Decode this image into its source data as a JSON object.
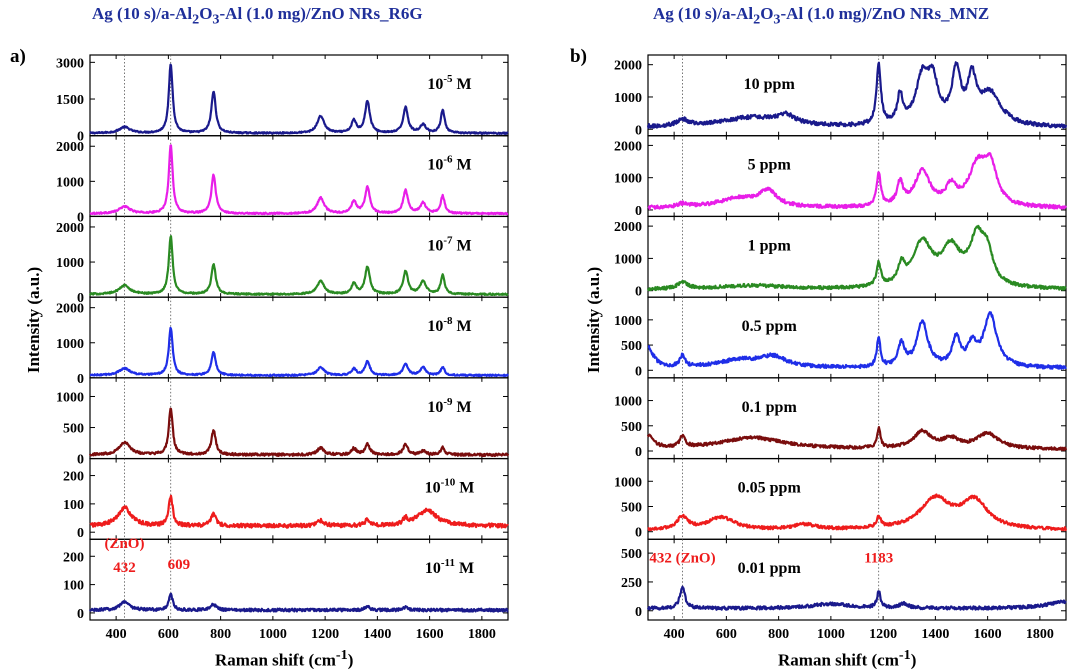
{
  "figure": {
    "y_axis_label": "Intensity (a.u.)",
    "x_axis_label_main": "Raman shift (cm",
    "x_axis_label_sup": "-1",
    "x_axis_label_end": ")"
  },
  "chart_data": [
    {
      "panel": "a)",
      "type": "line",
      "title_parts": [
        "Ag (10 s)/a-Al",
        "2",
        "O",
        "3",
        "-Al (1.0 mg)/ZnO NRs_R6G"
      ],
      "xlabel": "Raman shift (cm-1)",
      "ylabel": "Intensity (a.u.)",
      "xlim": [
        300,
        1900
      ],
      "xticks": [
        400,
        600,
        800,
        1000,
        1200,
        1400,
        1600,
        1800
      ],
      "guide_lines_x": [
        432,
        609
      ],
      "series": [
        {
          "name": "10-5 M",
          "label_base": "10",
          "label_exp": "-5",
          "label_unit": " M",
          "color": "#1a1a8c",
          "ylim": [
            0,
            3300
          ],
          "yticks": [
            0,
            1500,
            3000
          ],
          "tick_labels": [
            "0",
            "1500",
            "3000"
          ],
          "baseline": 100,
          "noise": 30,
          "peaks": [
            [
              432,
              250,
              25
            ],
            [
              609,
              2800,
              9
            ],
            [
              773,
              1700,
              10
            ],
            [
              1183,
              700,
              16
            ],
            [
              1310,
              500,
              11
            ],
            [
              1362,
              1300,
              11
            ],
            [
              1508,
              1050,
              11
            ],
            [
              1575,
              350,
              13
            ],
            [
              1650,
              950,
              9
            ]
          ]
        },
        {
          "name": "10-6 M",
          "label_base": "10",
          "label_exp": "-6",
          "label_unit": " M",
          "color": "#e81ee8",
          "ylim": [
            0,
            2300
          ],
          "yticks": [
            0,
            1000,
            2000
          ],
          "tick_labels": [
            "0",
            "1000",
            "2000"
          ],
          "baseline": 80,
          "noise": 22,
          "peaks": [
            [
              432,
              200,
              25
            ],
            [
              609,
              1950,
              9
            ],
            [
              773,
              1100,
              10
            ],
            [
              1183,
              450,
              16
            ],
            [
              1310,
              350,
              11
            ],
            [
              1362,
              750,
              11
            ],
            [
              1508,
              650,
              11
            ],
            [
              1575,
              300,
              13
            ],
            [
              1650,
              500,
              9
            ]
          ]
        },
        {
          "name": "10-7 M",
          "label_base": "10",
          "label_exp": "-7",
          "label_unit": " M",
          "color": "#2a8a22",
          "ylim": [
            0,
            2300
          ],
          "yticks": [
            0,
            1000,
            2000
          ],
          "tick_labels": [
            "0",
            "1000",
            "2000"
          ],
          "baseline": 80,
          "noise": 22,
          "peaks": [
            [
              432,
              250,
              25
            ],
            [
              609,
              1650,
              9
            ],
            [
              773,
              850,
              10
            ],
            [
              1183,
              380,
              16
            ],
            [
              1310,
              300,
              11
            ],
            [
              1362,
              780,
              11
            ],
            [
              1508,
              650,
              11
            ],
            [
              1575,
              380,
              13
            ],
            [
              1650,
              550,
              9
            ]
          ]
        },
        {
          "name": "10-8 M",
          "label_base": "10",
          "label_exp": "-8",
          "label_unit": " M",
          "color": "#1f2ee8",
          "ylim": [
            0,
            2300
          ],
          "yticks": [
            0,
            1000,
            2000
          ],
          "tick_labels": [
            "0",
            "1000",
            "2000"
          ],
          "baseline": 70,
          "noise": 22,
          "peaks": [
            [
              432,
              200,
              25
            ],
            [
              609,
              1350,
              9
            ],
            [
              773,
              650,
              10
            ],
            [
              1183,
              230,
              16
            ],
            [
              1310,
              180,
              11
            ],
            [
              1362,
              400,
              11
            ],
            [
              1508,
              330,
              11
            ],
            [
              1575,
              220,
              13
            ],
            [
              1650,
              230,
              9
            ]
          ]
        },
        {
          "name": "10-9 M",
          "label_base": "10",
          "label_exp": "-9",
          "label_unit": " M",
          "color": "#7a0d0d",
          "ylim": [
            0,
            1300
          ],
          "yticks": [
            0,
            500,
            1000
          ],
          "tick_labels": [
            "0",
            "500",
            "1000"
          ],
          "baseline": 60,
          "noise": 20,
          "peaks": [
            [
              432,
              200,
              25
            ],
            [
              609,
              750,
              9
            ],
            [
              773,
              400,
              10
            ],
            [
              1183,
              110,
              16
            ],
            [
              1310,
              100,
              11
            ],
            [
              1362,
              170,
              11
            ],
            [
              1508,
              170,
              11
            ],
            [
              1575,
              60,
              13
            ],
            [
              1650,
              120,
              9
            ]
          ]
        },
        {
          "name": "10-10 M",
          "label_base": "10",
          "label_exp": "-10",
          "label_unit": " M",
          "color": "#ee1c1c",
          "ylim": [
            -25,
            260
          ],
          "yticks": [
            0,
            100,
            200
          ],
          "tick_labels": [
            "0",
            "100",
            "200"
          ],
          "baseline": 22,
          "noise": 7,
          "peaks": [
            [
              432,
              65,
              30
            ],
            [
              609,
              105,
              9
            ],
            [
              773,
              40,
              12
            ],
            [
              1183,
              18,
              16
            ],
            [
              1362,
              22,
              11
            ],
            [
              1508,
              20,
              11
            ],
            [
              1590,
              55,
              45
            ]
          ]
        },
        {
          "name": "10-11 M",
          "label_base": "10",
          "label_exp": "-11",
          "label_unit": " M",
          "color": "#1a1a8c",
          "ylim": [
            -25,
            260
          ],
          "yticks": [
            0,
            100,
            200
          ],
          "tick_labels": [
            "0",
            "100",
            "200"
          ],
          "baseline": 10,
          "noise": 5,
          "peaks": [
            [
              432,
              30,
              22
            ],
            [
              609,
              55,
              9
            ],
            [
              773,
              20,
              12
            ],
            [
              1362,
              12,
              11
            ],
            [
              1508,
              10,
              11
            ]
          ]
        }
      ],
      "annotations": [
        {
          "text": "(ZnO)",
          "x": 432,
          "panel_index": 6,
          "y": 230
        },
        {
          "text": "432",
          "x": 432,
          "panel_index": 6,
          "y": 145
        },
        {
          "text": "609",
          "x": 640,
          "panel_index": 6,
          "y": 155
        }
      ]
    },
    {
      "panel": "b)",
      "type": "line",
      "title_parts": [
        "Ag (10 s)/a-Al",
        "2",
        "O",
        "3",
        "-Al (1.0 mg)/ZnO NRs_MNZ"
      ],
      "xlabel": "Raman shift (cm-1)",
      "ylabel": "Intensity (a.u.)",
      "xlim": [
        300,
        1900
      ],
      "xticks": [
        400,
        600,
        800,
        1000,
        1200,
        1400,
        1600,
        1800
      ],
      "guide_lines_x": [
        432,
        1183
      ],
      "series": [
        {
          "name": "10 ppm",
          "color": "#1a1a8c",
          "ylim": [
            -200,
            2300
          ],
          "yticks": [
            0,
            1000,
            2000
          ],
          "tick_labels": [
            "0",
            "1000",
            "2000"
          ],
          "baseline": 50,
          "noise": 60,
          "peaks": [
            [
              432,
              200,
              25
            ],
            [
              700,
              300,
              150
            ],
            [
              830,
              250,
              40
            ],
            [
              1183,
              1850,
              10
            ],
            [
              1265,
              900,
              12
            ],
            [
              1350,
              1400,
              30
            ],
            [
              1390,
              1200,
              25
            ],
            [
              1480,
              1600,
              20
            ],
            [
              1540,
              1300,
              20
            ],
            [
              1610,
              1000,
              50
            ]
          ]
        },
        {
          "name": "5 ppm",
          "color": "#e81ee8",
          "ylim": [
            -200,
            2300
          ],
          "yticks": [
            0,
            1000,
            2000
          ],
          "tick_labels": [
            "0",
            "1000",
            "2000"
          ],
          "baseline": 50,
          "noise": 55,
          "peaks": [
            [
              432,
              100,
              25
            ],
            [
              650,
              300,
              100
            ],
            [
              760,
              450,
              40
            ],
            [
              1183,
              1000,
              10
            ],
            [
              1265,
              700,
              14
            ],
            [
              1350,
              1100,
              35
            ],
            [
              1460,
              550,
              25
            ],
            [
              1560,
              1200,
              40
            ],
            [
              1610,
              1150,
              30
            ]
          ]
        },
        {
          "name": "1 ppm",
          "color": "#2a8a22",
          "ylim": [
            -200,
            2300
          ],
          "yticks": [
            0,
            1000,
            2000
          ],
          "tick_labels": [
            "0",
            "1000",
            "2000"
          ],
          "baseline": 30,
          "noise": 50,
          "peaks": [
            [
              432,
              200,
              25
            ],
            [
              700,
              120,
              150
            ],
            [
              1183,
              700,
              10
            ],
            [
              1270,
              550,
              15
            ],
            [
              1350,
              1350,
              45
            ],
            [
              1460,
              1150,
              45
            ],
            [
              1560,
              1450,
              35
            ],
            [
              1600,
              800,
              25
            ]
          ]
        },
        {
          "name": "0.5 ppm",
          "color": "#1f2ee8",
          "ylim": [
            -150,
            1450
          ],
          "yticks": [
            0,
            500,
            1000
          ],
          "tick_labels": [
            "0",
            "500",
            "1000"
          ],
          "baseline": 40,
          "noise": 35,
          "peaks": [
            [
              300,
              400,
              25
            ],
            [
              432,
              220,
              12
            ],
            [
              650,
              150,
              100
            ],
            [
              780,
              200,
              60
            ],
            [
              1183,
              600,
              8
            ],
            [
              1270,
              450,
              15
            ],
            [
              1350,
              900,
              25
            ],
            [
              1480,
              550,
              18
            ],
            [
              1540,
              400,
              20
            ],
            [
              1610,
              1050,
              30
            ]
          ]
        },
        {
          "name": "0.1 ppm",
          "color": "#7a0d0d",
          "ylim": [
            -150,
            1450
          ],
          "yticks": [
            0,
            500,
            1000
          ],
          "tick_labels": [
            "0",
            "500",
            "1000"
          ],
          "baseline": 30,
          "noise": 30,
          "peaks": [
            [
              300,
              250,
              25
            ],
            [
              432,
              220,
              12
            ],
            [
              700,
              230,
              150
            ],
            [
              1183,
              380,
              8
            ],
            [
              1350,
              330,
              40
            ],
            [
              1460,
              180,
              40
            ],
            [
              1600,
              300,
              50
            ]
          ]
        },
        {
          "name": "0.05 ppm",
          "color": "#ee1c1c",
          "ylim": [
            -150,
            1450
          ],
          "yticks": [
            0,
            500,
            1000
          ],
          "tick_labels": [
            "0",
            "500",
            "1000"
          ],
          "baseline": 30,
          "noise": 30,
          "peaks": [
            [
              432,
              250,
              25
            ],
            [
              580,
              250,
              60
            ],
            [
              900,
              100,
              50
            ],
            [
              1183,
              200,
              10
            ],
            [
              1400,
              600,
              70
            ],
            [
              1550,
              550,
              60
            ]
          ]
        },
        {
          "name": "0.01 ppm",
          "color": "#1a1a8c",
          "ylim": [
            -80,
            620
          ],
          "yticks": [
            0,
            250,
            500
          ],
          "tick_labels": [
            "0",
            "250",
            "500"
          ],
          "baseline": 20,
          "noise": 14,
          "peaks": [
            [
              432,
              180,
              12
            ],
            [
              1000,
              40,
              90
            ],
            [
              1183,
              140,
              8
            ],
            [
              1280,
              40,
              20
            ],
            [
              1900,
              60,
              80
            ]
          ]
        }
      ],
      "annotations": [
        {
          "text": "432 (ZnO)",
          "x": 432,
          "panel_index": 6,
          "y": 420
        },
        {
          "text": "1183",
          "x": 1183,
          "panel_index": 6,
          "y": 420
        }
      ]
    }
  ]
}
